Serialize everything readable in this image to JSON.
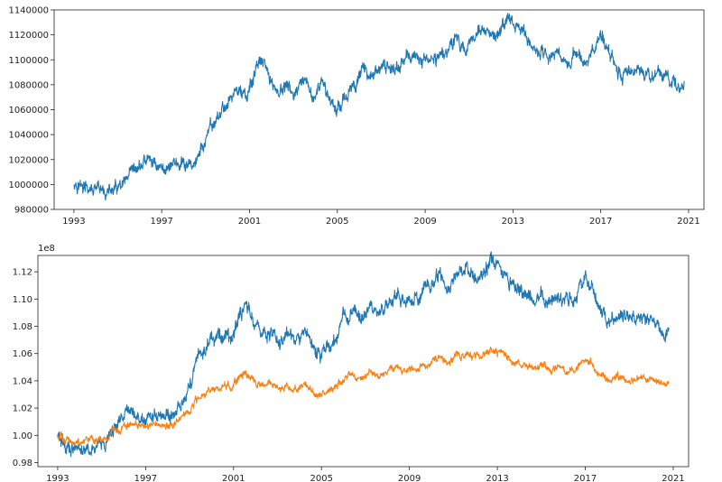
{
  "chart_data": [
    {
      "type": "line",
      "title": "",
      "xlabel": "",
      "ylabel": "",
      "xlim": [
        1992.1,
        2021.7
      ],
      "ylim": [
        980000,
        1140000
      ],
      "xticks": [
        1993,
        1997,
        2001,
        2005,
        2009,
        2013,
        2017,
        2021
      ],
      "yticks": [
        980000,
        1000000,
        1020000,
        1040000,
        1060000,
        1080000,
        1100000,
        1120000,
        1140000
      ],
      "ytick_labels": [
        "980000",
        "1000000",
        "1020000",
        "1040000",
        "1060000",
        "1080000",
        "1100000",
        "1120000",
        "1140000"
      ],
      "offset_text": "",
      "grid": false,
      "series": [
        {
          "name": "",
          "color": "#1f77b4",
          "x": [
            1993.0,
            1993.3,
            1993.6,
            1994.0,
            1994.4,
            1994.8,
            1995.2,
            1995.6,
            1995.9,
            1996.3,
            1996.7,
            1997.1,
            1997.5,
            1997.9,
            1998.2,
            1998.6,
            1999.0,
            1999.4,
            1999.8,
            2000.2,
            2000.6,
            2000.9,
            2001.2,
            2001.5,
            2001.9,
            2002.3,
            2002.7,
            2003.1,
            2003.5,
            2003.9,
            2004.3,
            2004.7,
            2004.95,
            2005.3,
            2005.7,
            2006.0,
            2006.4,
            2006.8,
            2007.2,
            2007.6,
            2008.0,
            2008.4,
            2008.8,
            2009.2,
            2009.6,
            2010.0,
            2010.4,
            2010.8,
            2011.2,
            2011.6,
            2012.0,
            2012.4,
            2012.7,
            2013.0,
            2013.4,
            2013.8,
            2014.2,
            2014.6,
            2015.0,
            2015.4,
            2015.8,
            2016.2,
            2016.6,
            2017.0,
            2017.3,
            2017.7,
            2018.0,
            2018.4,
            2018.8,
            2019.2,
            2019.6,
            2020.0,
            2020.4,
            2020.8
          ],
          "values": [
            1003000,
            999000,
            996000,
            994000,
            993500,
            995000,
            997000,
            1006000,
            1012000,
            1020000,
            1017000,
            1012000,
            1018000,
            1015000,
            1013000,
            1020000,
            1035000,
            1050000,
            1060000,
            1072000,
            1076000,
            1068000,
            1088000,
            1099000,
            1086000,
            1074000,
            1078000,
            1072000,
            1080000,
            1070000,
            1079000,
            1068000,
            1061000,
            1070000,
            1075000,
            1090000,
            1091000,
            1088000,
            1095000,
            1093000,
            1098000,
            1104000,
            1099000,
            1100000,
            1103000,
            1109000,
            1118000,
            1106000,
            1122000,
            1124000,
            1116000,
            1120000,
            1132000,
            1130000,
            1124000,
            1112000,
            1106000,
            1102000,
            1108000,
            1097000,
            1106000,
            1098000,
            1105000,
            1118000,
            1112000,
            1097000,
            1084000,
            1092000,
            1090000,
            1085000,
            1090000,
            1086000,
            1079000,
            1083000
          ]
        }
      ]
    },
    {
      "type": "line",
      "title": "",
      "xlabel": "",
      "ylabel": "",
      "xlim": [
        1992.1,
        2021.7
      ],
      "ylim": [
        0.977,
        1.132
      ],
      "xticks": [
        1993,
        1997,
        2001,
        2005,
        2009,
        2013,
        2017,
        2021
      ],
      "yticks": [
        0.98,
        1.0,
        1.02,
        1.04,
        1.06,
        1.08,
        1.1,
        1.12
      ],
      "ytick_labels": [
        "0.98",
        "1.00",
        "1.02",
        "1.04",
        "1.06",
        "1.08",
        "1.10",
        "1.12"
      ],
      "offset_text": "1e8",
      "grid": false,
      "series": [
        {
          "name": "",
          "color": "#1f77b4",
          "x": [
            1993.0,
            1993.3,
            1993.6,
            1994.0,
            1994.4,
            1994.8,
            1995.2,
            1995.6,
            1995.9,
            1996.3,
            1996.7,
            1997.1,
            1997.5,
            1997.9,
            1998.2,
            1998.6,
            1999.0,
            1999.4,
            1999.8,
            2000.2,
            2000.6,
            2000.9,
            2001.2,
            2001.5,
            2001.9,
            2002.3,
            2002.7,
            2003.1,
            2003.5,
            2003.9,
            2004.3,
            2004.7,
            2004.95,
            2005.3,
            2005.7,
            2006.0,
            2006.4,
            2006.8,
            2007.2,
            2007.6,
            2008.0,
            2008.4,
            2008.8,
            2009.2,
            2009.6,
            2010.0,
            2010.4,
            2010.8,
            2011.2,
            2011.6,
            2012.0,
            2012.4,
            2012.7,
            2013.0,
            2013.4,
            2013.8,
            2014.2,
            2014.6,
            2015.0,
            2015.4,
            2015.8,
            2016.2,
            2016.6,
            2017.0,
            2017.3,
            2017.7,
            2018.0,
            2018.4,
            2018.8,
            2019.2,
            2019.6,
            2020.0,
            2020.4,
            2020.8
          ],
          "values": [
            1.0,
            0.992,
            0.99,
            0.988,
            0.99,
            0.992,
            0.995,
            1.006,
            1.013,
            1.018,
            1.014,
            1.01,
            1.015,
            1.012,
            1.012,
            1.022,
            1.038,
            1.055,
            1.066,
            1.073,
            1.075,
            1.068,
            1.085,
            1.096,
            1.086,
            1.073,
            1.076,
            1.07,
            1.077,
            1.068,
            1.075,
            1.065,
            1.058,
            1.066,
            1.072,
            1.087,
            1.09,
            1.086,
            1.093,
            1.092,
            1.097,
            1.103,
            1.098,
            1.1,
            1.104,
            1.11,
            1.118,
            1.105,
            1.12,
            1.123,
            1.115,
            1.118,
            1.129,
            1.127,
            1.12,
            1.11,
            1.104,
            1.1,
            1.105,
            1.096,
            1.104,
            1.097,
            1.103,
            1.116,
            1.11,
            1.092,
            1.083,
            1.089,
            1.087,
            1.082,
            1.086,
            1.083,
            1.076,
            1.079
          ]
        },
        {
          "name": "",
          "color": "#ff7f0e",
          "x": [
            1993.0,
            1993.3,
            1993.6,
            1994.0,
            1994.4,
            1994.8,
            1995.2,
            1995.6,
            1995.9,
            1996.3,
            1996.7,
            1997.1,
            1997.5,
            1997.9,
            1998.2,
            1998.6,
            1999.0,
            1999.4,
            1999.8,
            2000.2,
            2000.6,
            2000.9,
            2001.2,
            2001.5,
            2001.9,
            2002.3,
            2002.7,
            2003.1,
            2003.5,
            2003.9,
            2004.3,
            2004.7,
            2004.95,
            2005.3,
            2005.7,
            2006.0,
            2006.4,
            2006.8,
            2007.2,
            2007.6,
            2008.0,
            2008.4,
            2008.8,
            2009.2,
            2009.6,
            2010.0,
            2010.4,
            2010.8,
            2011.2,
            2011.6,
            2012.0,
            2012.4,
            2012.7,
            2013.0,
            2013.4,
            2013.8,
            2014.2,
            2014.6,
            2015.0,
            2015.4,
            2015.8,
            2016.2,
            2016.6,
            2017.0,
            2017.3,
            2017.7,
            2018.0,
            2018.4,
            2018.8,
            2019.2,
            2019.6,
            2020.0,
            2020.4,
            2020.8
          ],
          "values": [
            1.0,
            0.997,
            0.996,
            0.995,
            0.996,
            0.997,
            0.998,
            1.003,
            1.006,
            1.008,
            1.007,
            1.006,
            1.008,
            1.007,
            1.007,
            1.012,
            1.019,
            1.027,
            1.032,
            1.035,
            1.037,
            1.034,
            1.042,
            1.047,
            1.043,
            1.036,
            1.038,
            1.035,
            1.037,
            1.034,
            1.036,
            1.032,
            1.029,
            1.033,
            1.035,
            1.042,
            1.043,
            1.042,
            1.046,
            1.045,
            1.047,
            1.05,
            1.048,
            1.049,
            1.051,
            1.054,
            1.058,
            1.052,
            1.059,
            1.06,
            1.057,
            1.058,
            1.063,
            1.062,
            1.059,
            1.054,
            1.051,
            1.049,
            1.052,
            1.048,
            1.051,
            1.048,
            1.05,
            1.056,
            1.053,
            1.044,
            1.04,
            1.043,
            1.042,
            1.04,
            1.042,
            1.041,
            1.038,
            1.039
          ]
        }
      ]
    }
  ]
}
